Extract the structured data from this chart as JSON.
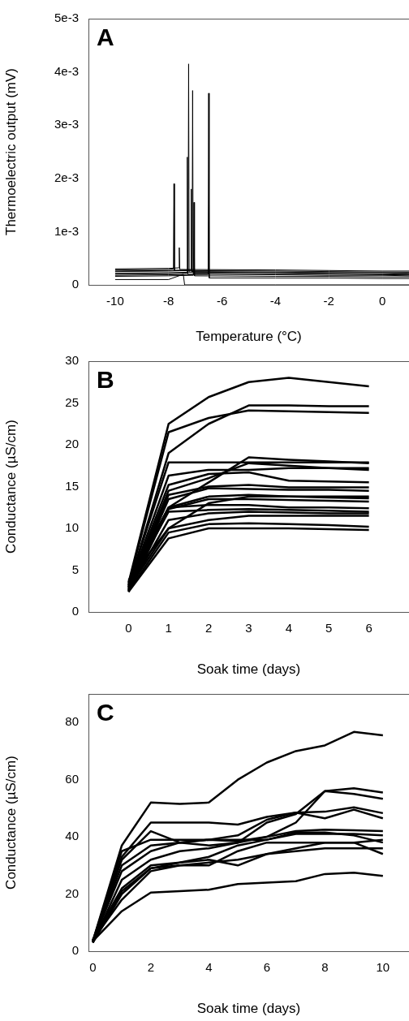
{
  "chart_data": [
    {
      "type": "line",
      "xlabel": "Temperature (°C)",
      "ylabel": "Thermoelectric output (mV)",
      "annotations": [
        "A"
      ],
      "xlim": [
        -11,
        1
      ],
      "ylim": [
        0,
        0.005
      ],
      "xticks": [
        -10,
        -8,
        -6,
        -4,
        -2,
        0
      ],
      "yticks": [
        0,
        {
          "value": 0.001,
          "label": "1e-3"
        },
        {
          "value": 0.002,
          "label": "2e-3"
        },
        {
          "value": 0.003,
          "label": "3e-3"
        },
        {
          "value": 0.004,
          "label": "4e-3"
        },
        {
          "value": 0.005,
          "label": "5e-3"
        }
      ],
      "marker": "none",
      "line_style": "solid",
      "series": [
        {
          "color": "#000000",
          "x": [
            -10,
            -8,
            -7.27,
            -7.25,
            -7.23,
            -4,
            -2,
            0,
            1
          ],
          "values": [
            0.00025,
            0.00026,
            0.00027,
            0.00415,
            0.00024,
            0.00023,
            0.00022,
            0.00021,
            0.0002
          ]
        },
        {
          "color": "#000000",
          "x": [
            -10,
            -8,
            -7.12,
            -7.1,
            -7.08,
            -4,
            -2,
            0,
            1
          ],
          "values": [
            0.00022,
            0.00023,
            0.00024,
            0.00365,
            0.00022,
            0.00021,
            0.0002,
            0.00019,
            0.00019
          ]
        },
        {
          "color": "#000000",
          "x": [
            -10,
            -8,
            -6.52,
            -6.5,
            -6.48,
            -4,
            -2,
            0,
            1
          ],
          "values": [
            0.00018,
            0.00019,
            0.0002,
            0.0036,
            0.00013,
            0.00013,
            0.00013,
            0.00012,
            0.00012
          ]
        },
        {
          "color": "#000000",
          "x": [
            -10,
            -8,
            -7.82,
            -7.8,
            -7.78,
            -4,
            -2,
            0,
            1
          ],
          "values": [
            0.00028,
            0.00029,
            0.0003,
            0.0019,
            0.00027,
            0.00026,
            0.00025,
            0.00024,
            0.00024
          ]
        },
        {
          "color": "#000000",
          "x": [
            -10,
            -8,
            -7.32,
            -7.3,
            -7.28,
            -4,
            -2,
            0,
            1
          ],
          "values": [
            0.0002,
            0.00021,
            0.00022,
            0.0024,
            0.0002,
            0.00019,
            0.00018,
            0.00018,
            0.00017
          ]
        },
        {
          "color": "#000000",
          "x": [
            -10,
            -8,
            -7.07,
            -7.05,
            -7.03,
            -4,
            -2,
            0,
            1
          ],
          "values": [
            0.00016,
            0.00017,
            0.00018,
            0.00155,
            0.00017,
            0.00016,
            0.00016,
            0.00015,
            0.00015
          ]
        },
        {
          "color": "#000000",
          "x": [
            -10,
            -8,
            -7.62,
            -7.6,
            -7.58,
            -4,
            -2,
            0,
            1
          ],
          "values": [
            0.0003,
            0.00031,
            0.00032,
            0.0007,
            0.00029,
            0.00028,
            0.00027,
            0.00026,
            0.00026
          ]
        },
        {
          "color": "#000000",
          "x": [
            -10,
            -8,
            -7.17,
            -7.15,
            -7.13,
            -4,
            -2,
            0,
            1
          ],
          "values": [
            0.00026,
            0.00027,
            0.00028,
            0.0018,
            0.00025,
            0.00024,
            0.00023,
            0.00023,
            0.00022
          ]
        },
        {
          "color": "#000000",
          "x": [
            -10,
            -8,
            -7.45,
            -7.4,
            -4,
            0,
            1
          ],
          "values": [
            0.0001,
            0.0001,
            0.0002,
            0,
            0,
            0,
            0
          ]
        }
      ]
    },
    {
      "type": "line",
      "xlabel": "Soak time (days)",
      "ylabel": "Conductance (µS/cm)",
      "annotations": [
        "B"
      ],
      "xlim": [
        -1,
        7
      ],
      "ylim": [
        0,
        30
      ],
      "xticks": [
        0,
        1,
        2,
        3,
        4,
        5,
        6
      ],
      "yticks": [
        0,
        5,
        10,
        15,
        20,
        25,
        30
      ],
      "marker": "none",
      "line_style": "solid",
      "x": [
        0,
        1,
        2,
        3,
        4,
        5,
        6
      ],
      "series": [
        {
          "color": "#000000",
          "values": [
            3.5,
            22.5,
            25.7,
            27.5,
            28,
            27.5,
            27
          ]
        },
        {
          "color": "#000000",
          "values": [
            3.3,
            21.5,
            23.2,
            24.1,
            24,
            23.9,
            23.8
          ]
        },
        {
          "color": "#000000",
          "values": [
            3,
            19,
            22.5,
            24.7,
            24.7,
            24.6,
            24.6
          ]
        },
        {
          "color": "#000000",
          "values": [
            3.2,
            17.9,
            17.9,
            17.9,
            17.9,
            17.9,
            17.9
          ]
        },
        {
          "color": "#000000",
          "values": [
            2.8,
            12.5,
            15.5,
            18.5,
            18.2,
            18,
            17.8
          ]
        },
        {
          "color": "#000000",
          "values": [
            3,
            16.3,
            17,
            17,
            17.2,
            17.2,
            17.2
          ]
        },
        {
          "color": "#000000",
          "values": [
            2.9,
            15.2,
            16.5,
            16.7,
            15.7,
            15.6,
            15.5
          ]
        },
        {
          "color": "#000000",
          "values": [
            2.7,
            14.5,
            16,
            17.8,
            17.5,
            17.2,
            17
          ]
        },
        {
          "color": "#000000",
          "values": [
            2.6,
            14,
            15,
            15.2,
            14.9,
            14.9,
            14.9
          ]
        },
        {
          "color": "#000000",
          "values": [
            2.5,
            13.5,
            14.8,
            14.7,
            14.6,
            14.6,
            14.5
          ]
        },
        {
          "color": "#000000",
          "values": [
            3,
            12.5,
            13.8,
            14,
            13.8,
            13.8,
            13.8
          ]
        },
        {
          "color": "#000000",
          "values": [
            2.4,
            12.3,
            13.5,
            13.5,
            13.4,
            13.3,
            13.2
          ]
        },
        {
          "color": "#000000",
          "values": [
            3.6,
            12.5,
            12.8,
            12.8,
            12.5,
            12.5,
            12.4
          ]
        },
        {
          "color": "#000000",
          "values": [
            3.2,
            12,
            12.2,
            12.3,
            12.2,
            12.1,
            12
          ]
        },
        {
          "color": "#000000",
          "values": [
            2.6,
            11,
            11.8,
            12,
            11.9,
            11.8,
            11.8
          ]
        },
        {
          "color": "#000000",
          "values": [
            2.8,
            10,
            11,
            11.5,
            11.5,
            11.5,
            11.5
          ]
        },
        {
          "color": "#000000",
          "values": [
            2.5,
            9.5,
            10.5,
            10.6,
            10.5,
            10.4,
            10.2
          ]
        },
        {
          "color": "#000000",
          "values": [
            2.4,
            8.8,
            10,
            10,
            10,
            9.9,
            9.8
          ]
        },
        {
          "color": "#000000",
          "values": [
            3.8,
            10,
            13,
            13.8,
            13.8,
            13.7,
            13.6
          ]
        }
      ]
    },
    {
      "type": "line",
      "xlabel": "Soak time (days)",
      "ylabel": "Conductance (µS/cm)",
      "annotations": [
        "C"
      ],
      "xlim": [
        -0.15,
        10.9
      ],
      "ylim": [
        0,
        90
      ],
      "xticks": [
        0,
        2,
        4,
        6,
        8,
        10
      ],
      "yticks": [
        0,
        20,
        40,
        60,
        80
      ],
      "marker": "none",
      "line_style": "solid",
      "x": [
        0,
        1,
        2,
        3,
        4,
        5,
        6,
        7,
        8,
        9,
        10
      ],
      "series": [
        {
          "color": "#000000",
          "values": [
            3.5,
            37,
            52,
            51.5,
            52,
            60,
            66,
            70,
            72,
            76.7,
            75.5
          ]
        },
        {
          "color": "#000000",
          "values": [
            3.5,
            33,
            45,
            45,
            45,
            44.3,
            47,
            48.5,
            48.8,
            50.3,
            48.3
          ]
        },
        {
          "color": "#000000",
          "values": [
            3.5,
            32,
            42,
            38,
            37,
            38,
            45,
            48,
            56,
            57,
            55.5
          ]
        },
        {
          "color": "#000000",
          "values": [
            3.5,
            30,
            37,
            38,
            39,
            38.5,
            40,
            45,
            56,
            55,
            53.3
          ]
        },
        {
          "color": "#000000",
          "values": [
            3.5,
            35,
            39,
            39,
            39,
            40.5,
            46,
            48.5,
            46.5,
            49.5,
            46.5
          ]
        },
        {
          "color": "#000000",
          "values": [
            3,
            25,
            32,
            35,
            36,
            38,
            40,
            42,
            42.5,
            42.3,
            42
          ]
        },
        {
          "color": "#000000",
          "values": [
            4,
            22,
            30,
            31,
            33,
            37,
            39,
            41.5,
            41.5,
            40.5,
            38
          ]
        },
        {
          "color": "#000000",
          "values": [
            3.5,
            28,
            35,
            38,
            39,
            39,
            39,
            41,
            41,
            41,
            40.5
          ]
        },
        {
          "color": "#000000",
          "values": [
            3,
            20,
            29,
            30,
            30,
            35,
            38,
            38,
            38,
            38,
            39
          ]
        },
        {
          "color": "#000000",
          "values": [
            4,
            18,
            28,
            30,
            31,
            32,
            34,
            35,
            36,
            36,
            36
          ]
        },
        {
          "color": "#000000",
          "values": [
            3,
            21,
            29,
            31,
            32,
            30,
            34,
            36,
            38,
            38,
            34
          ]
        },
        {
          "color": "#000000",
          "values": [
            3.5,
            14,
            20.5,
            21,
            21.5,
            23.5,
            24,
            24.5,
            27,
            27.5,
            26.3
          ]
        }
      ]
    }
  ]
}
